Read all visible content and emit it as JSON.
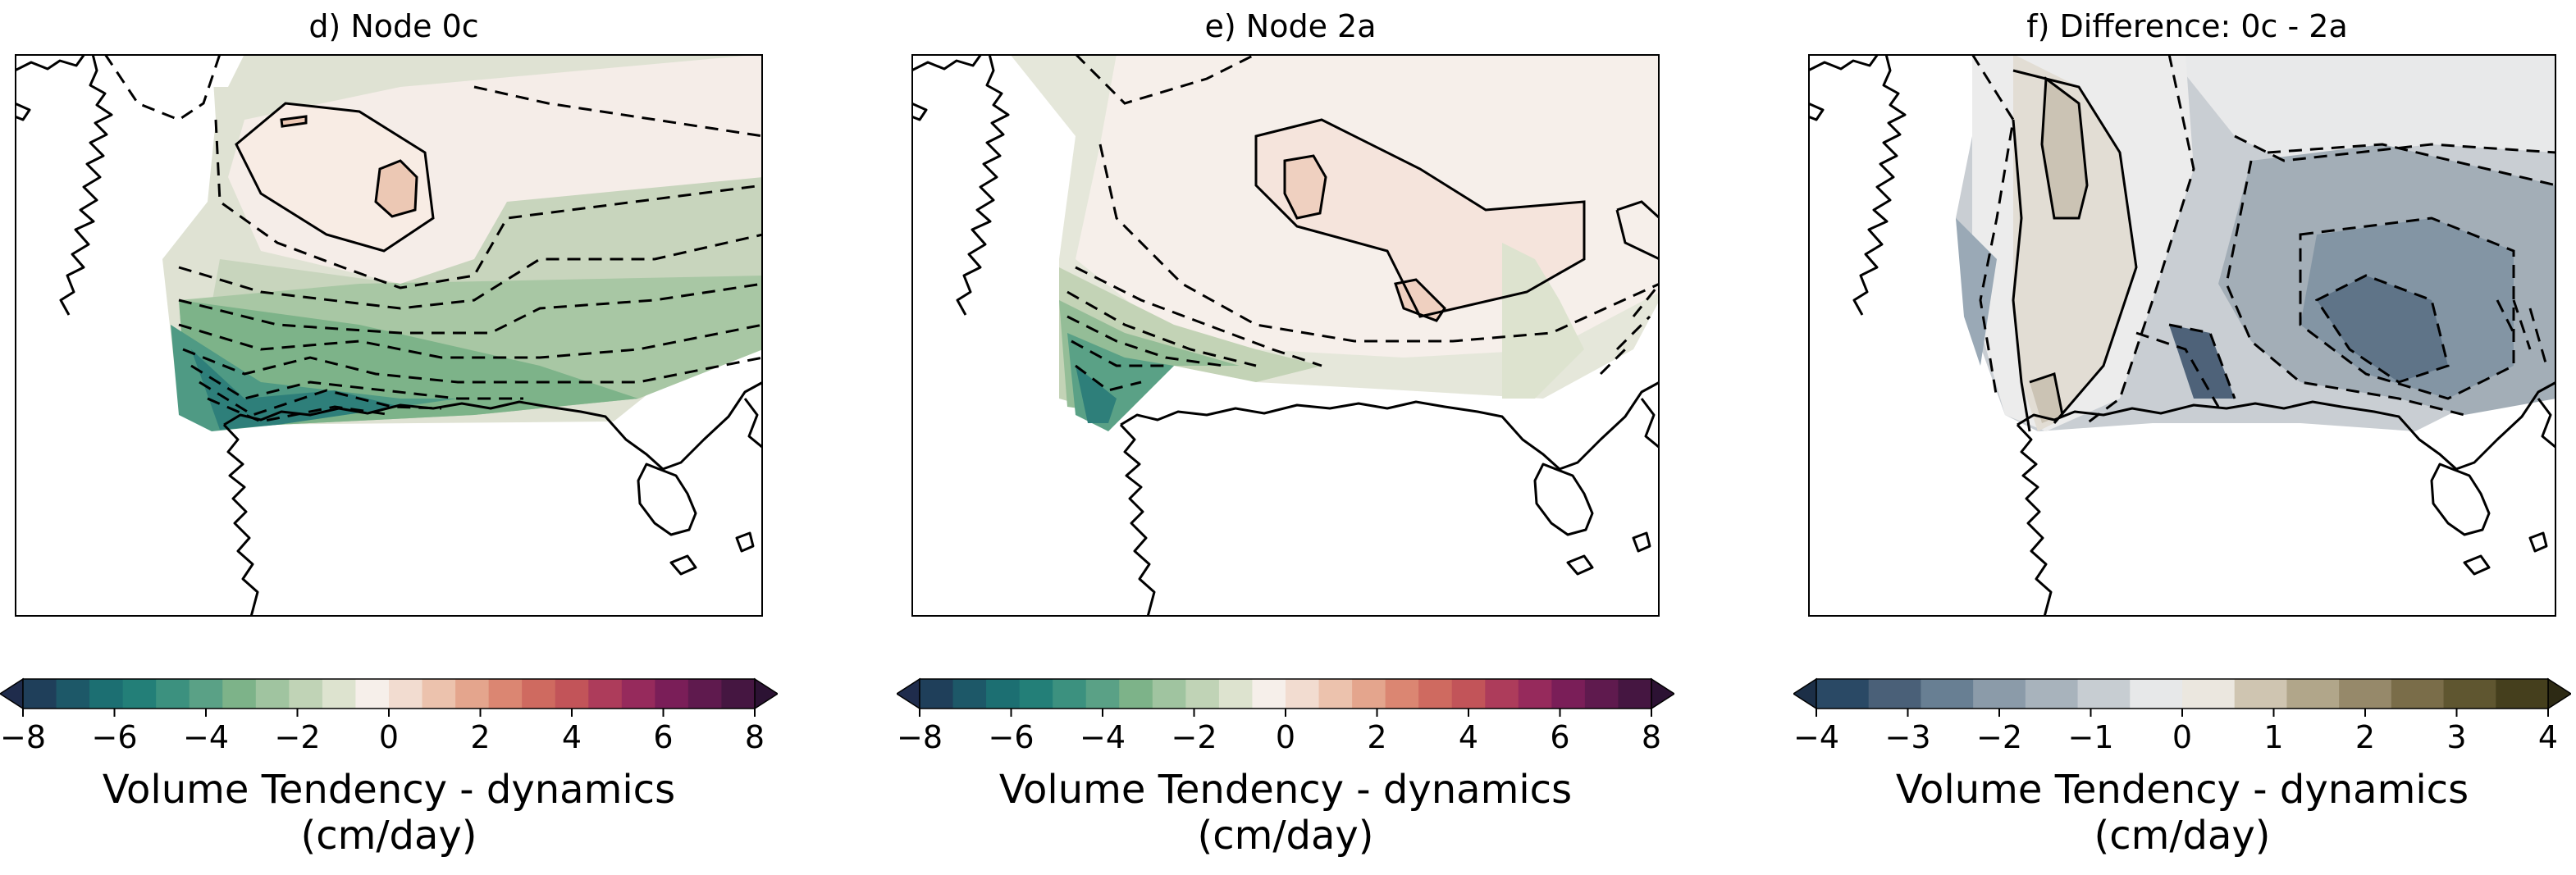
{
  "chart_data": [
    {
      "type": "heatmap",
      "title": "d) Node 0c",
      "colorbar": {
        "ticks": [
          "−8",
          "−6",
          "−4",
          "−2",
          "0",
          "2",
          "4",
          "6",
          "8"
        ],
        "range": [
          -8,
          8
        ],
        "extend": "both",
        "colormap": "diverging green–white–purple",
        "label_line1": "Volume Tendency - dynamics",
        "label_line2": "(cm/day)"
      },
      "features": {
        "max_positive": 2,
        "max_negative": -7
      }
    },
    {
      "type": "heatmap",
      "title": "e) Node 2a",
      "colorbar": {
        "ticks": [
          "−8",
          "−6",
          "−4",
          "−2",
          "0",
          "2",
          "4",
          "6",
          "8"
        ],
        "range": [
          -8,
          8
        ],
        "extend": "both",
        "colormap": "diverging green–white–purple",
        "label_line1": "Volume Tendency - dynamics",
        "label_line2": "(cm/day)"
      },
      "features": {
        "max_positive": 2,
        "max_negative": -6
      }
    },
    {
      "type": "heatmap",
      "title": "f) Difference: 0c - 2a",
      "colorbar": {
        "ticks": [
          "−4",
          "−3",
          "−2",
          "−1",
          "0",
          "1",
          "2",
          "3",
          "4"
        ],
        "range": [
          -4,
          4
        ],
        "extend": "both",
        "colormap": "diverging slate-blue–white–olive",
        "label_line1": "Volume Tendency - dynamics",
        "label_line2": "(cm/day)"
      },
      "features": {
        "max_positive": 1,
        "max_negative": -3
      }
    }
  ]
}
